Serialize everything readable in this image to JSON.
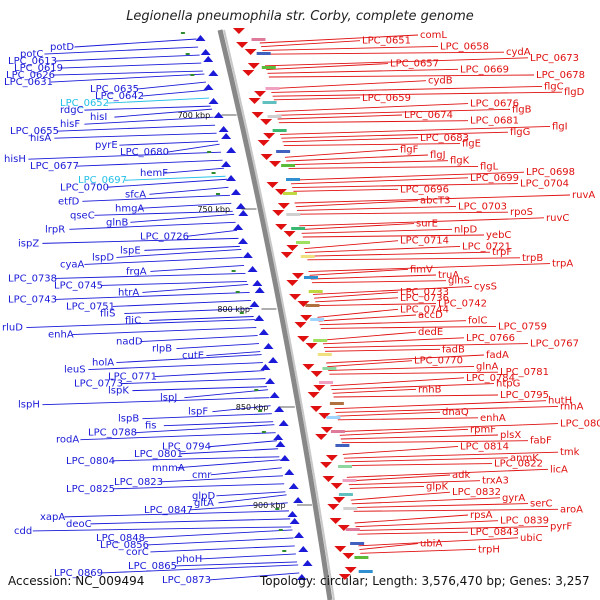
{
  "title": "Legionella pneumophila str. Corby, complete genome",
  "footer": {
    "accession": "Accession: NC_009494",
    "topology": "Topology: circular; Length: 3,576,470 bp; Genes: 3,257"
  },
  "colors": {
    "minus_strand": "#1a1ad8",
    "plus_strand": "#e01010",
    "highlight": "#23c0e8",
    "backbone": "#888888",
    "tick": "#2e8b2e"
  },
  "scale_marks": [
    "700 kbp",
    "750 kbp",
    "800 kbp",
    "850 kbp",
    "900 kbp"
  ],
  "left_genes": [
    "potD",
    "potC",
    "LPC_0613",
    "LPC_0619",
    "LPC_0626",
    "LPC_0631",
    "LPC_0635",
    "LPC_0642",
    "LPC_0652",
    "rdgC",
    "hisI",
    "hisF",
    "LPC_0655",
    "hisA",
    "pyrE",
    "LPC_0680",
    "hisH",
    "LPC_0677",
    "hemF",
    "LPC_0697",
    "LPC_0700",
    "sfcA",
    "etfD",
    "hmgA",
    "qseC",
    "glnB",
    "lrpR",
    "LPC_0726",
    "ispZ",
    "lspE",
    "lspD",
    "cyaA",
    "frgA",
    "LPC_0738",
    "LPC_0745",
    "htrA",
    "LPC_0743",
    "LPC_0751",
    "fliS",
    "fliC",
    "rluD",
    "enhA",
    "nadD",
    "rlpB",
    "cutE",
    "holA",
    "leuS",
    "LPC_0771",
    "LPC_0773",
    "lspK",
    "lspJ",
    "lspH",
    "lspF",
    "lspB",
    "fis",
    "LPC_0788",
    "rodA",
    "LPC_0794",
    "LPC_0801",
    "LPC_0804",
    "mnmA",
    "cmr",
    "LPC_0823",
    "LPC_0825",
    "glpD",
    "gltA",
    "LPC_0847",
    "xapA",
    "deoC",
    "cdd",
    "LPC_0848",
    "LPC_0856",
    "corC",
    "phoH",
    "LPC_0865",
    "LPC_0869",
    "LPC_0873"
  ],
  "right_genes": [
    "comL",
    "LPC_0651",
    "LPC_0658",
    "cydA",
    "LPC_0673",
    "LPC_0657",
    "LPC_0669",
    "LPC_0678",
    "cydB",
    "flgC",
    "flgD",
    "LPC_0659",
    "LPC_0676",
    "flgB",
    "LPC_0674",
    "LPC_0681",
    "flgI",
    "flgG",
    "LPC_0683",
    "flgE",
    "flgF",
    "flgJ",
    "flgK",
    "flgL",
    "LPC_0698",
    "LPC_0699",
    "LPC_0704",
    "LPC_0696",
    "ruvA",
    "abcT3",
    "LPC_0703",
    "rpoS",
    "ruvC",
    "surE",
    "nlpD",
    "yebC",
    "LPC_0714",
    "LPC_0721",
    "trpF",
    "trpB",
    "trpA",
    "fimV",
    "truA",
    "glnS",
    "cysS",
    "LPC_0733",
    "LPC_0736",
    "LPC_0742",
    "LPC_0744",
    "accD",
    "folC",
    "LPC_0759",
    "dedE",
    "LPC_0766",
    "LPC_0767",
    "fadB",
    "fadA",
    "LPC_0770",
    "glnA",
    "LPC_0781",
    "LPC_0784",
    "htpG",
    "rnhB",
    "LPC_0795",
    "hutH",
    "rnhA",
    "dnaQ",
    "enhA",
    "LPC_0806",
    "rpmF",
    "plsX",
    "fabF",
    "LPC_0814",
    "tmk",
    "anmK",
    "LPC_0822",
    "licA",
    "adk",
    "trxA3",
    "glpK",
    "LPC_0832",
    "gyrA",
    "serC",
    "aroA",
    "rpsA",
    "LPC_0839",
    "pyrF",
    "LPC_0843",
    "ubiC",
    "ubiA",
    "trpH"
  ]
}
